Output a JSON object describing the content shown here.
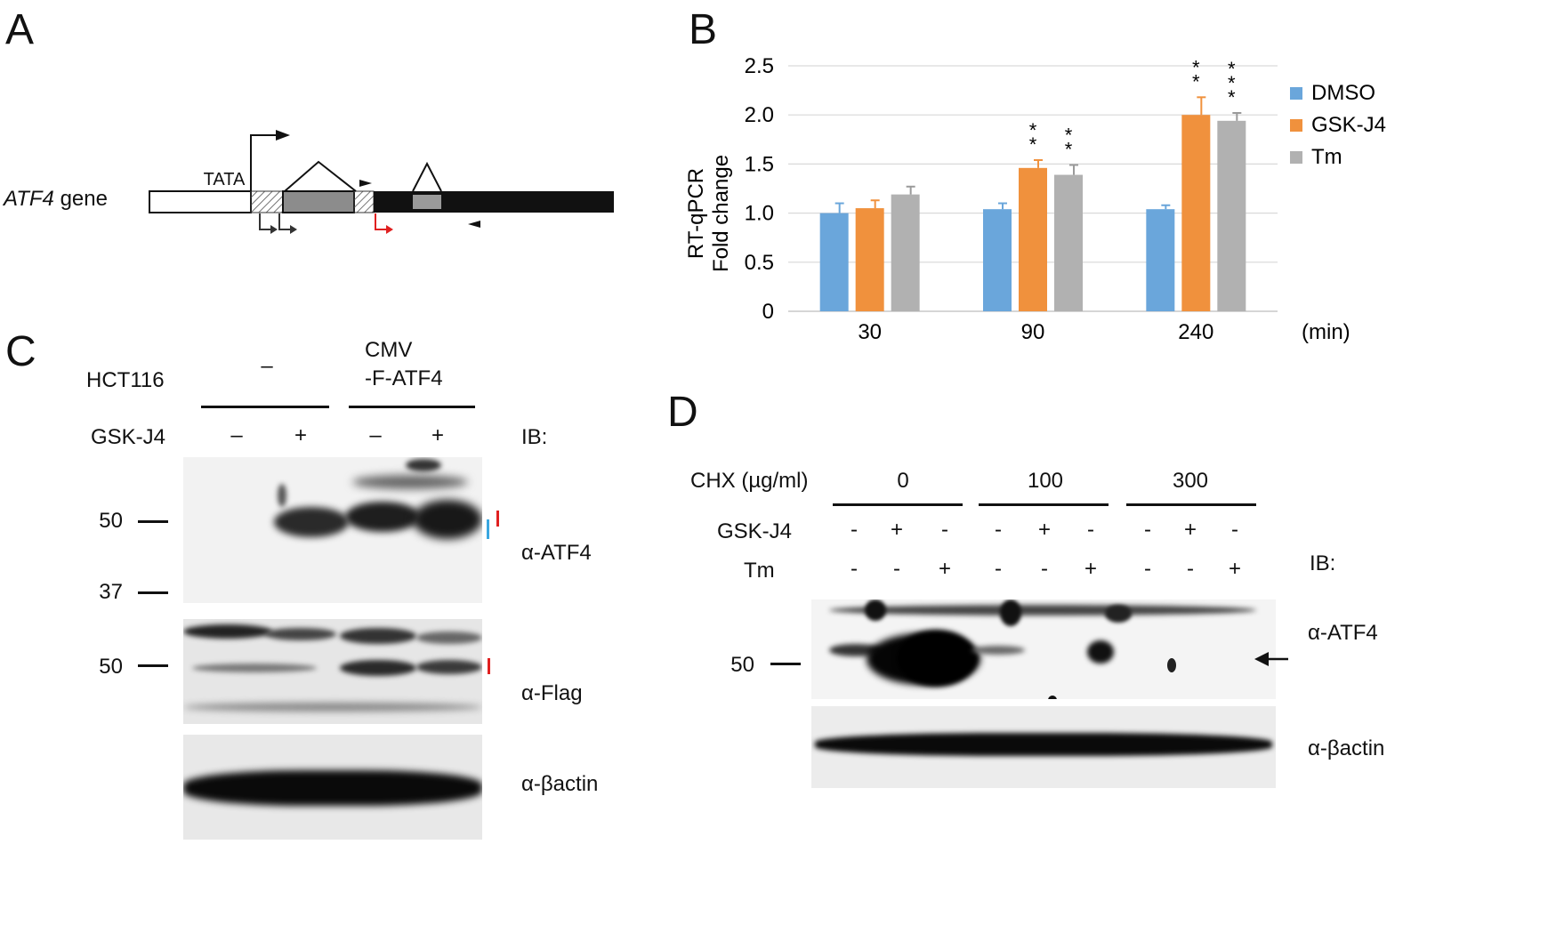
{
  "panels": {
    "A": {
      "letter": "A",
      "gene_italic": "ATF4",
      "gene_suffix": " gene",
      "tata": "TATA"
    },
    "B": {
      "letter": "B",
      "x_unit": "(min)"
    },
    "C": {
      "letter": "C",
      "cell_line": "HCT116",
      "group1": "–",
      "group2_line1": "CMV",
      "group2_line2": "-F-ATF4",
      "gsk_label": "GSK-J4",
      "gsk_signs": [
        "–",
        "+",
        "–",
        "+"
      ],
      "ib": "IB:",
      "mw_atf4_50": "50",
      "mw_atf4_37": "37",
      "mw_flag_50": "50",
      "ab_atf4": "α-ATF4",
      "ab_flag": "α-Flag",
      "ab_actin": "α-βactin"
    },
    "D": {
      "letter": "D",
      "chx_label": "CHX (µg/ml)",
      "chx_doses": [
        "0",
        "100",
        "300"
      ],
      "gsk_label": "GSK-J4",
      "gsk_signs": [
        "-",
        "+",
        "-",
        "-",
        "+",
        "-",
        "-",
        "+",
        "-"
      ],
      "tm_label": "Tm",
      "tm_signs": [
        "-",
        "-",
        "+",
        "-",
        "-",
        "+",
        "-",
        "-",
        "+"
      ],
      "ib": "IB:",
      "mw_50": "50",
      "ab_atf4": "α-ATF4",
      "ab_actin": "α-βactin"
    }
  },
  "chart_data": {
    "type": "bar",
    "ylabel_line1": "RT-qPCR",
    "ylabel_line2": "Fold change",
    "categories": [
      "30",
      "90",
      "240"
    ],
    "ylim": [
      0,
      2.5
    ],
    "yticks": [
      "0",
      "0.5",
      "1.0",
      "1.5",
      "2.0",
      "2.5"
    ],
    "grid": true,
    "legend_position": "right",
    "series": [
      {
        "name": "DMSO",
        "color": "#6aa6db",
        "values": [
          1.0,
          1.04,
          1.04
        ],
        "errors": [
          0.1,
          0.06,
          0.04
        ],
        "stars": [
          "",
          "",
          ""
        ]
      },
      {
        "name": "GSK-J4",
        "color": "#f0913d",
        "values": [
          1.05,
          1.46,
          2.0
        ],
        "errors": [
          0.08,
          0.08,
          0.18
        ],
        "stars": [
          "",
          "**",
          "**"
        ]
      },
      {
        "name": "Tm",
        "color": "#b1b1b1",
        "values": [
          1.19,
          1.39,
          1.94
        ],
        "errors": [
          0.08,
          0.1,
          0.08
        ],
        "stars": [
          "",
          "**",
          "***"
        ]
      }
    ]
  }
}
